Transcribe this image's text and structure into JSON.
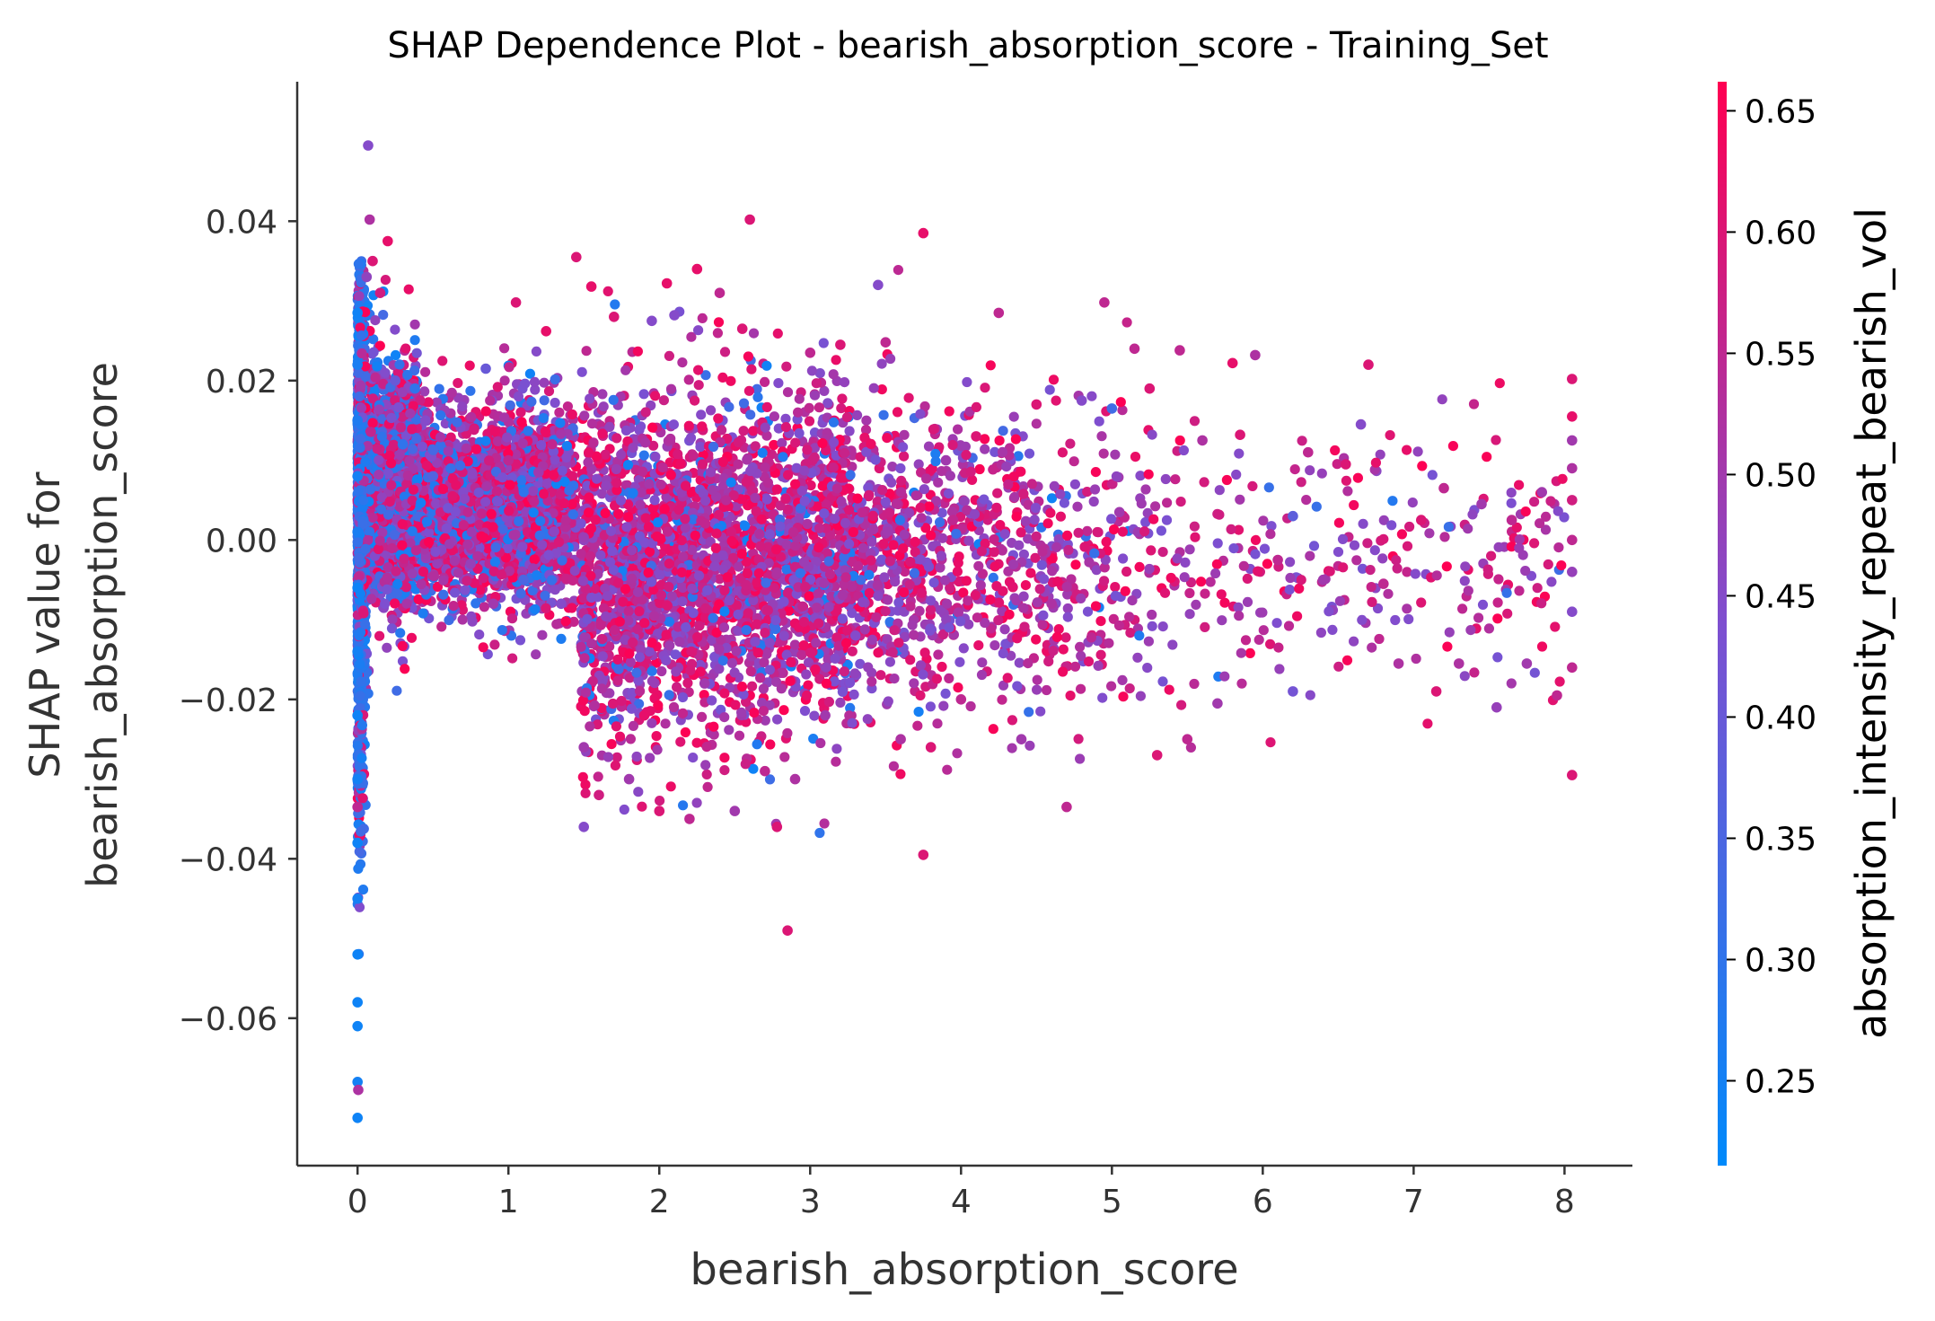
{
  "chart_data": {
    "type": "scatter",
    "title": "SHAP Dependence Plot - bearish_absorption_score - Training_Set",
    "xlabel": "bearish_absorption_score",
    "ylabel_line1": "SHAP value for",
    "ylabel_line2": "bearish_absorption_score",
    "xlim": [
      -0.4,
      8.45
    ],
    "ylim": [
      -0.0785,
      0.0575
    ],
    "x_ticks": [
      0,
      1,
      2,
      3,
      4,
      5,
      6,
      7,
      8
    ],
    "x_tick_labels": [
      "0",
      "1",
      "2",
      "3",
      "4",
      "5",
      "6",
      "7",
      "8"
    ],
    "y_ticks": [
      -0.06,
      -0.04,
      -0.02,
      0.0,
      0.02,
      0.04
    ],
    "y_tick_labels": [
      "−0.06",
      "−0.04",
      "−0.02",
      "0.00",
      "0.02",
      "0.04"
    ],
    "grid": false,
    "colorbar": {
      "label": "absorption_intensity_repeat_bearish_vol",
      "range": [
        0.215,
        0.662
      ],
      "ticks": [
        0.25,
        0.3,
        0.35,
        0.4,
        0.45,
        0.5,
        0.55,
        0.6,
        0.65
      ],
      "tick_labels": [
        "0.25",
        "0.30",
        "0.35",
        "0.40",
        "0.45",
        "0.50",
        "0.55",
        "0.60",
        "0.65"
      ],
      "colors": [
        "#008afb",
        "#7e4fd0",
        "#ff0052"
      ]
    },
    "points": [
      [
        0.0,
        0.0285,
        0.24
      ],
      [
        0.0,
        0.022,
        0.26
      ],
      [
        0.0,
        0.015,
        0.27
      ],
      [
        0.0,
        0.008,
        0.25
      ],
      [
        0.0,
        0.001,
        0.26
      ],
      [
        0.0,
        -0.006,
        0.24
      ],
      [
        0.0,
        -0.014,
        0.25
      ],
      [
        0.0,
        -0.022,
        0.24
      ],
      [
        0.0,
        -0.03,
        0.25
      ],
      [
        0.0,
        -0.038,
        0.24
      ],
      [
        0.0,
        -0.045,
        0.25
      ],
      [
        0.0,
        -0.052,
        0.24
      ],
      [
        0.0,
        -0.058,
        0.24
      ],
      [
        0.0,
        -0.061,
        0.24
      ],
      [
        0.0,
        -0.068,
        0.25
      ],
      [
        0.0,
        -0.0725,
        0.24
      ],
      [
        0.0,
        -0.0335,
        0.55
      ],
      [
        0.005,
        -0.069,
        0.52
      ],
      [
        0.07,
        0.0495,
        0.45
      ],
      [
        0.08,
        0.0402,
        0.52
      ],
      [
        0.1,
        0.035,
        0.6
      ],
      [
        0.15,
        0.031,
        0.58
      ],
      [
        0.2,
        0.0375,
        0.62
      ],
      [
        0.06,
        0.033,
        0.47
      ],
      [
        0.25,
        0.02,
        0.4
      ],
      [
        0.3,
        0.012,
        0.3
      ],
      [
        0.38,
        0.019,
        0.3
      ],
      [
        0.45,
        0.015,
        0.45
      ],
      [
        0.5,
        0.008,
        0.36
      ],
      [
        0.6,
        0.004,
        0.42
      ],
      [
        0.75,
        -0.003,
        0.48
      ],
      [
        0.85,
        0.0215,
        0.4
      ],
      [
        0.9,
        -0.008,
        0.5
      ],
      [
        1.0,
        0.01,
        0.55
      ],
      [
        1.05,
        0.0298,
        0.6
      ],
      [
        1.1,
        -0.005,
        0.35
      ],
      [
        1.2,
        0.0085,
        0.5
      ],
      [
        1.25,
        0.0262,
        0.62
      ],
      [
        1.35,
        -0.008,
        0.45
      ],
      [
        1.45,
        0.0355,
        0.6
      ],
      [
        1.5,
        -0.036,
        0.45
      ],
      [
        1.5,
        -0.026,
        0.5
      ],
      [
        1.55,
        0.0318,
        0.62
      ],
      [
        1.6,
        -0.032,
        0.58
      ],
      [
        1.7,
        0.028,
        0.6
      ],
      [
        1.8,
        -0.03,
        0.5
      ],
      [
        1.9,
        -0.022,
        0.62
      ],
      [
        1.95,
        0.0275,
        0.45
      ],
      [
        2.0,
        -0.034,
        0.6
      ],
      [
        2.05,
        0.0322,
        0.62
      ],
      [
        2.1,
        0.0282,
        0.45
      ],
      [
        2.2,
        -0.035,
        0.55
      ],
      [
        2.25,
        0.034,
        0.62
      ],
      [
        2.3,
        -0.018,
        0.5
      ],
      [
        2.4,
        0.031,
        0.55
      ],
      [
        2.5,
        -0.034,
        0.5
      ],
      [
        2.55,
        0.0265,
        0.6
      ],
      [
        2.6,
        0.0402,
        0.6
      ],
      [
        2.7,
        -0.029,
        0.55
      ],
      [
        2.78,
        -0.036,
        0.6
      ],
      [
        2.85,
        -0.049,
        0.6
      ],
      [
        2.9,
        -0.03,
        0.52
      ],
      [
        3.0,
        0.0235,
        0.55
      ],
      [
        3.1,
        -0.022,
        0.5
      ],
      [
        3.2,
        0.0245,
        0.6
      ],
      [
        3.3,
        -0.012,
        0.45
      ],
      [
        3.45,
        0.032,
        0.45
      ],
      [
        3.5,
        0.0248,
        0.55
      ],
      [
        3.6,
        -0.025,
        0.52
      ],
      [
        3.75,
        0.0385,
        0.62
      ],
      [
        3.75,
        -0.0395,
        0.6
      ],
      [
        3.8,
        -0.026,
        0.6
      ],
      [
        3.9,
        0.01,
        0.5
      ],
      [
        4.0,
        -0.02,
        0.55
      ],
      [
        4.1,
        0.013,
        0.6
      ],
      [
        4.25,
        0.0285,
        0.55
      ],
      [
        4.4,
        -0.025,
        0.5
      ],
      [
        4.5,
        0.017,
        0.6
      ],
      [
        4.6,
        -0.008,
        0.52
      ],
      [
        4.7,
        -0.0335,
        0.55
      ],
      [
        4.8,
        0.0175,
        0.45
      ],
      [
        4.95,
        0.0298,
        0.55
      ],
      [
        5.0,
        0.0165,
        0.33
      ],
      [
        5.05,
        0.0035,
        0.5
      ],
      [
        5.15,
        0.024,
        0.55
      ],
      [
        5.25,
        0.019,
        0.6
      ],
      [
        5.3,
        -0.027,
        0.6
      ],
      [
        5.45,
        0.0238,
        0.55
      ],
      [
        5.5,
        -0.025,
        0.55
      ],
      [
        5.6,
        0.0125,
        0.52
      ],
      [
        5.7,
        -0.0205,
        0.5
      ],
      [
        5.8,
        0.0222,
        0.62
      ],
      [
        5.85,
        0.0132,
        0.6
      ],
      [
        5.95,
        0.0232,
        0.52
      ],
      [
        6.1,
        -0.0025,
        0.55
      ],
      [
        6.2,
        -0.019,
        0.42
      ],
      [
        6.2,
        0.003,
        0.38
      ],
      [
        6.3,
        0.011,
        0.55
      ],
      [
        6.4,
        -0.005,
        0.5
      ],
      [
        6.55,
        0.0095,
        0.6
      ],
      [
        6.65,
        0.0145,
        0.45
      ],
      [
        6.7,
        0.022,
        0.6
      ],
      [
        6.8,
        -0.0055,
        0.55
      ],
      [
        6.9,
        -0.0155,
        0.52
      ],
      [
        7.05,
        0.0025,
        0.6
      ],
      [
        7.15,
        -0.019,
        0.6
      ],
      [
        7.2,
        0.0065,
        0.55
      ],
      [
        7.3,
        -0.0155,
        0.52
      ],
      [
        7.45,
        0.0045,
        0.5
      ],
      [
        7.55,
        -0.021,
        0.48
      ],
      [
        7.65,
        0.0025,
        0.55
      ],
      [
        7.75,
        -0.0155,
        0.5
      ],
      [
        7.85,
        0.006,
        0.5
      ],
      [
        7.95,
        -0.0195,
        0.55
      ],
      [
        8.05,
        0.0202,
        0.6
      ],
      [
        8.05,
        0.0155,
        0.62
      ],
      [
        8.05,
        0.009,
        0.52
      ],
      [
        8.05,
        0.0,
        0.55
      ],
      [
        8.05,
        -0.009,
        0.45
      ],
      [
        8.05,
        -0.016,
        0.55
      ],
      [
        8.05,
        -0.0295,
        0.6
      ],
      [
        8.05,
        0.0125,
        0.5
      ],
      [
        8.05,
        -0.004,
        0.48
      ],
      [
        8.05,
        0.005,
        0.58
      ]
    ],
    "cloud": {
      "count": 9000,
      "seed": 12345,
      "note_free": true
    }
  }
}
